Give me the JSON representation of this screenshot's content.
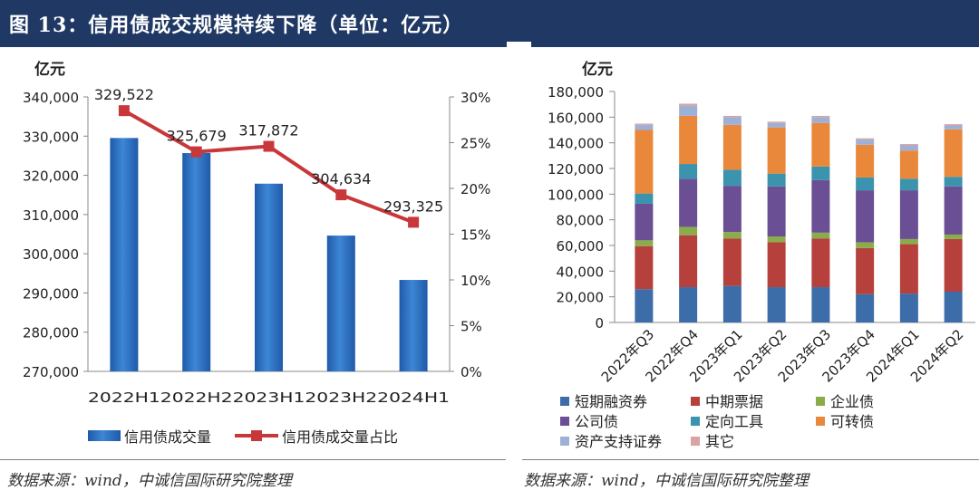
{
  "header": {
    "title": "图 13：信用债成交规模持续下降（单位：亿元）"
  },
  "colors": {
    "title_bg": "#1f3864",
    "bar": "#2e6fc0",
    "line": "#c8373a"
  },
  "chart_data": [
    {
      "type": "bar+line",
      "unit_label": "亿元",
      "categories": [
        "2022H1",
        "2022H2",
        "2023H1",
        "2023H2",
        "2024H1"
      ],
      "ylim": [
        270000,
        340000
      ],
      "y_ticks": [
        "340,000",
        "330,000",
        "320,000",
        "310,000",
        "300,000",
        "290,000",
        "280,000",
        "270,000"
      ],
      "y2lim": [
        0,
        30
      ],
      "y2_ticks": [
        "30%",
        "25%",
        "20%",
        "15%",
        "10%",
        "5%",
        "0%"
      ],
      "series": [
        {
          "name": "信用债成交量",
          "kind": "bar",
          "values": [
            329522,
            325679,
            317872,
            304634,
            293325
          ],
          "labels": [
            "329,522",
            "325,679",
            "317,872",
            "304,634",
            "293,325"
          ]
        },
        {
          "name": "信用债成交量占比",
          "kind": "line",
          "axis": "right",
          "values": [
            28.5,
            24.0,
            24.6,
            19.3,
            16.3
          ]
        }
      ],
      "legend": "bottom",
      "source": "数据来源：wind，中诚信国际研究院整理"
    },
    {
      "type": "stacked-bar",
      "unit_label": "亿元",
      "categories": [
        "2022年Q3",
        "2022年Q4",
        "2023年Q1",
        "2023年Q2",
        "2023年Q3",
        "2023年Q4",
        "2024年Q1",
        "2024年Q2"
      ],
      "ylim": [
        0,
        180000
      ],
      "y_ticks": [
        "180,000",
        "160,000",
        "140,000",
        "120,000",
        "100,000",
        "80,000",
        "60,000",
        "40,000",
        "20,000",
        "0"
      ],
      "series": [
        {
          "name": "短期融资券",
          "color": "#3d6da8",
          "values": [
            26000,
            27500,
            28500,
            27500,
            27500,
            22000,
            22500,
            24000
          ]
        },
        {
          "name": "中期票据",
          "color": "#b5403c",
          "values": [
            33500,
            40500,
            37000,
            35000,
            38000,
            36000,
            38500,
            41000
          ]
        },
        {
          "name": "企业债",
          "color": "#8aac4a",
          "values": [
            4500,
            6500,
            5000,
            4500,
            4500,
            4500,
            4000,
            3500
          ]
        },
        {
          "name": "公司债",
          "color": "#6a4f94",
          "values": [
            28500,
            37500,
            36000,
            39000,
            41000,
            40500,
            38000,
            37500
          ]
        },
        {
          "name": "定向工具",
          "color": "#3c93ad",
          "values": [
            8000,
            11500,
            12500,
            10000,
            10500,
            10000,
            9000,
            7500
          ]
        },
        {
          "name": "可转债",
          "color": "#e9883a",
          "values": [
            49500,
            37500,
            35000,
            36000,
            34000,
            25500,
            22000,
            37000
          ]
        },
        {
          "name": "资产支持证券",
          "color": "#9db1d8",
          "values": [
            4000,
            8000,
            6000,
            3500,
            4500,
            4000,
            4000,
            3000
          ]
        },
        {
          "name": "其它",
          "color": "#d8a3a2",
          "values": [
            1000,
            1500,
            1000,
            1000,
            1000,
            1000,
            1000,
            1000
          ]
        }
      ],
      "legend": "bottom",
      "source": "数据来源：wind，中诚信国际研究院整理"
    }
  ]
}
